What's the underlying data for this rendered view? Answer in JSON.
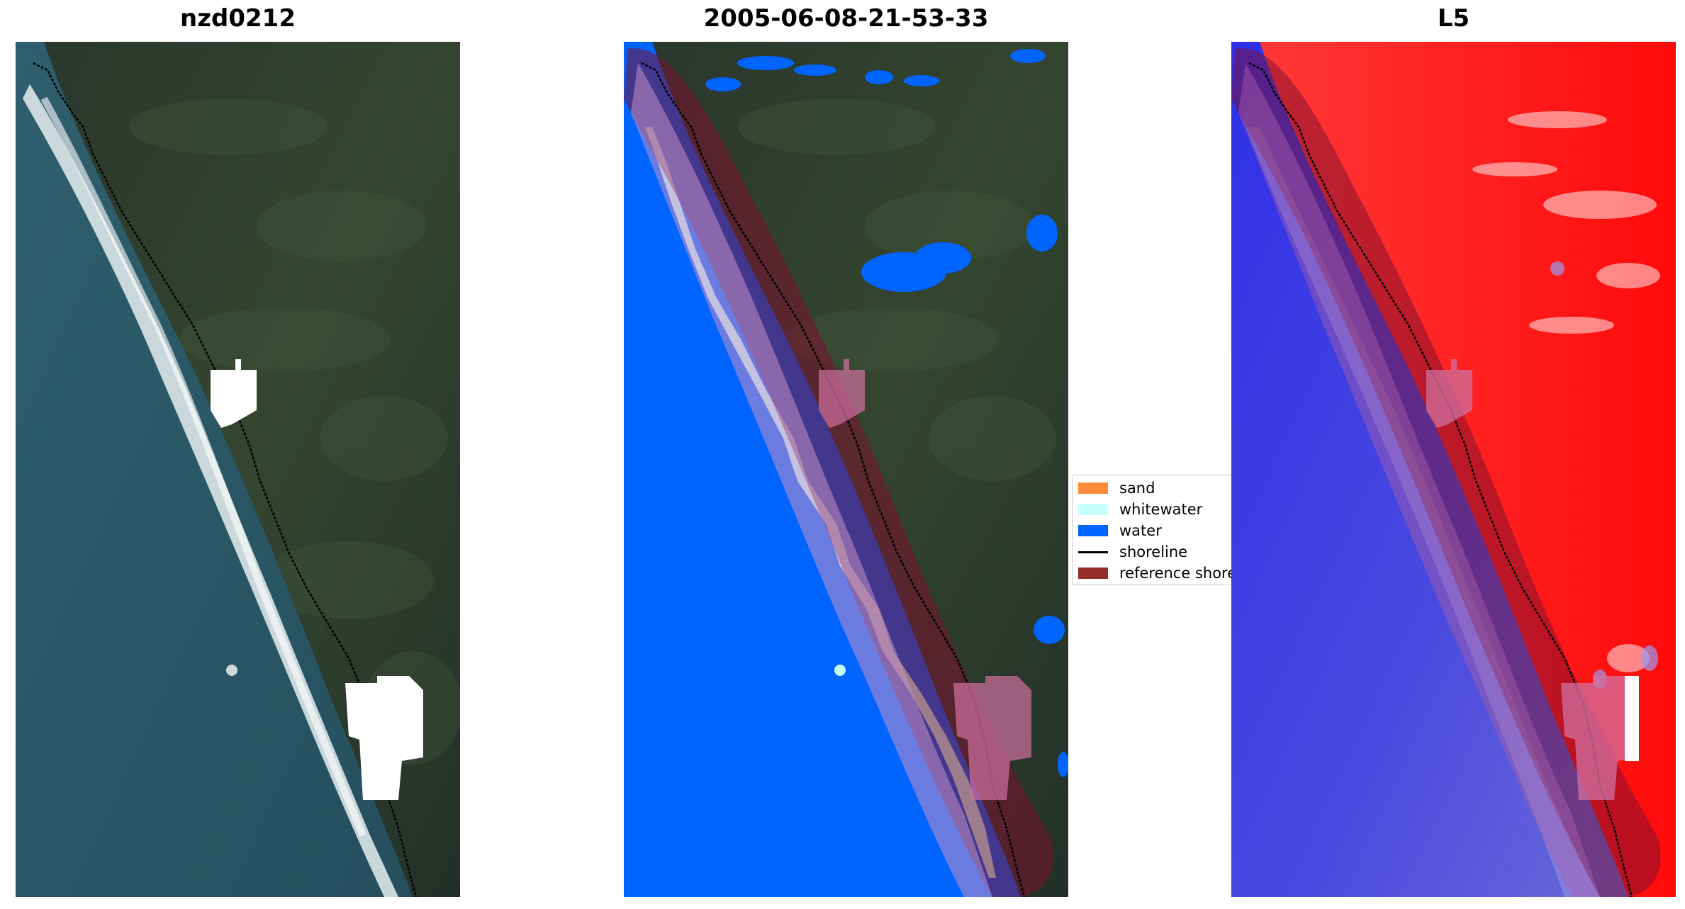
{
  "panels": [
    {
      "title": "nzd0212",
      "content": "rgb-satellite-image"
    },
    {
      "title": "2005-06-08-21-53-33",
      "content": "classified-image"
    },
    {
      "title": "L5",
      "content": "mndwi-index-image"
    }
  ],
  "legend": {
    "items": [
      {
        "label": "sand",
        "color": "#ff8c3c",
        "kind": "patch"
      },
      {
        "label": "whitewater",
        "color": "#c8ffff",
        "kind": "patch"
      },
      {
        "label": "water",
        "color": "#0064ff",
        "kind": "patch"
      },
      {
        "label": "shoreline",
        "color": "#000000",
        "kind": "line"
      },
      {
        "label": "reference shoreline buffer",
        "color": "#962d2d",
        "kind": "patch"
      }
    ]
  },
  "colors": {
    "land_dark": "#26302a",
    "land_green": "#34452f",
    "ocean": "#2b5766",
    "surf": "#e6eef0",
    "cloud_mask": "#ffffff",
    "buffer": "#7a1030",
    "index_land": "#ff1a1a",
    "index_water": "#3a3af0"
  }
}
